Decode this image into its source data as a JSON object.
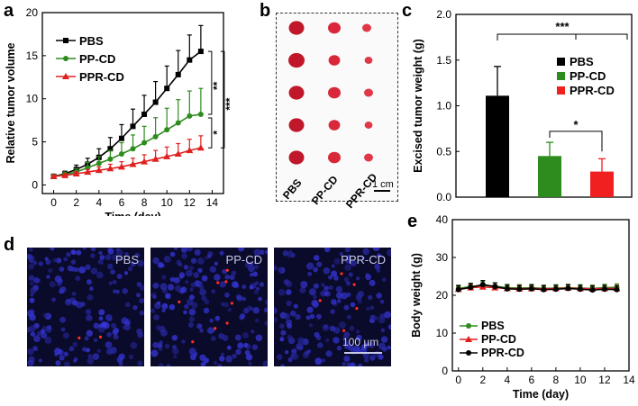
{
  "panels": {
    "a": "a",
    "b": "b",
    "c": "c",
    "d": "d",
    "e": "e"
  },
  "chart_data": [
    {
      "id": "a",
      "type": "line",
      "title": "",
      "xlabel": "Time (day)",
      "ylabel": "Relative tumor volume",
      "xlim": [
        -1,
        15
      ],
      "ylim": [
        -1,
        20
      ],
      "xticks": [
        0,
        2,
        4,
        6,
        8,
        10,
        12,
        14
      ],
      "yticks": [
        0,
        5,
        10,
        15,
        20
      ],
      "x": [
        0,
        1,
        2,
        3,
        4,
        5,
        6,
        7,
        8,
        9,
        10,
        11,
        12,
        13
      ],
      "series": [
        {
          "name": "PBS",
          "color": "#000000",
          "marker": "square",
          "values": [
            1,
            1.3,
            1.8,
            2.4,
            3.2,
            4.2,
            5.4,
            6.8,
            8.2,
            9.6,
            11.2,
            12.8,
            14.5,
            15.5
          ],
          "errors": [
            0.2,
            0.3,
            0.5,
            0.7,
            1.0,
            1.3,
            1.6,
            2.0,
            2.2,
            2.4,
            2.6,
            2.8,
            2.9,
            3.0
          ]
        },
        {
          "name": "PP-CD",
          "color": "#2e8b1e",
          "marker": "circle",
          "values": [
            1,
            1.2,
            1.5,
            2.0,
            2.5,
            3.0,
            3.6,
            4.2,
            4.9,
            5.6,
            6.4,
            7.2,
            8.0,
            8.2
          ],
          "errors": [
            0.2,
            0.3,
            0.4,
            0.6,
            0.8,
            1.0,
            1.3,
            1.6,
            1.9,
            2.2,
            2.5,
            2.7,
            2.9,
            3.0
          ]
        },
        {
          "name": "PPR-CD",
          "color": "#e02020",
          "marker": "triangle",
          "values": [
            1,
            1.1,
            1.3,
            1.5,
            1.7,
            1.9,
            2.1,
            2.4,
            2.7,
            3.0,
            3.3,
            3.6,
            4.0,
            4.3
          ],
          "errors": [
            0.1,
            0.2,
            0.2,
            0.3,
            0.4,
            0.5,
            0.6,
            0.7,
            0.8,
            1.0,
            1.1,
            1.2,
            1.3,
            1.4
          ]
        }
      ],
      "legend": "top-left",
      "significance": [
        "**",
        "***",
        "*"
      ]
    },
    {
      "id": "c",
      "type": "bar",
      "title": "",
      "xlabel": "",
      "ylabel": "Excised tumor weight (g)",
      "ylim": [
        0,
        2.0
      ],
      "yticks": [
        0.0,
        0.5,
        1.0,
        1.5,
        2.0
      ],
      "categories": [
        "PBS",
        "PP-CD",
        "PPR-CD"
      ],
      "values": [
        1.11,
        0.45,
        0.28
      ],
      "errors": [
        0.32,
        0.15,
        0.14
      ],
      "colors": [
        "#000000",
        "#2e8b1e",
        "#f02020"
      ],
      "legend": "right",
      "significance": [
        "***",
        "*"
      ]
    },
    {
      "id": "e",
      "type": "line",
      "title": "",
      "xlabel": "Time (day)",
      "ylabel": "Body weight (g)",
      "xlim": [
        -0.5,
        14
      ],
      "ylim": [
        0,
        40
      ],
      "xticks": [
        0,
        2,
        4,
        6,
        8,
        10,
        12,
        14
      ],
      "yticks": [
        0,
        10,
        20,
        30,
        40
      ],
      "x": [
        0,
        1,
        2,
        3,
        4,
        5,
        6,
        7,
        8,
        9,
        10,
        11,
        12,
        13
      ],
      "series": [
        {
          "name": "PBS",
          "color": "#2e8b1e",
          "marker": "circle",
          "values": [
            21.8,
            22.3,
            22.6,
            22.4,
            22.0,
            21.9,
            22.0,
            21.8,
            21.9,
            22.0,
            21.9,
            21.8,
            22.0,
            22.1
          ],
          "errors": [
            0.9,
            0.9,
            1.0,
            0.9,
            0.9,
            0.9,
            0.9,
            0.9,
            0.9,
            0.9,
            0.9,
            0.9,
            0.9,
            0.9
          ]
        },
        {
          "name": "PP-CD",
          "color": "#e02020",
          "marker": "triangle",
          "values": [
            21.6,
            22.0,
            22.2,
            22.0,
            21.8,
            21.7,
            21.8,
            21.7,
            21.8,
            21.9,
            21.8,
            21.7,
            21.8,
            21.8
          ],
          "errors": [
            0.8,
            0.8,
            0.9,
            0.8,
            0.8,
            0.8,
            0.8,
            0.8,
            0.8,
            0.8,
            0.8,
            0.8,
            0.8,
            0.8
          ]
        },
        {
          "name": "PPR-CD",
          "color": "#000000",
          "marker": "circle",
          "values": [
            21.5,
            22.1,
            22.8,
            22.3,
            21.7,
            21.6,
            21.7,
            21.5,
            21.6,
            21.8,
            21.6,
            21.4,
            21.6,
            21.5
          ],
          "errors": [
            1.0,
            1.0,
            1.1,
            1.0,
            1.0,
            1.0,
            1.0,
            1.0,
            1.0,
            1.0,
            1.0,
            1.0,
            1.0,
            1.0
          ]
        }
      ],
      "legend": "bottom-left"
    }
  ],
  "photo": {
    "labels": [
      "PBS",
      "PP-CD",
      "PPR-CD"
    ],
    "scale": "1 cm"
  },
  "micrographs": [
    {
      "label": "PBS",
      "red_dots": 2
    },
    {
      "label": "PP-CD",
      "red_dots": 8
    },
    {
      "label": "PPR-CD",
      "red_dots": 5
    }
  ],
  "micro_scale": "100 µm"
}
